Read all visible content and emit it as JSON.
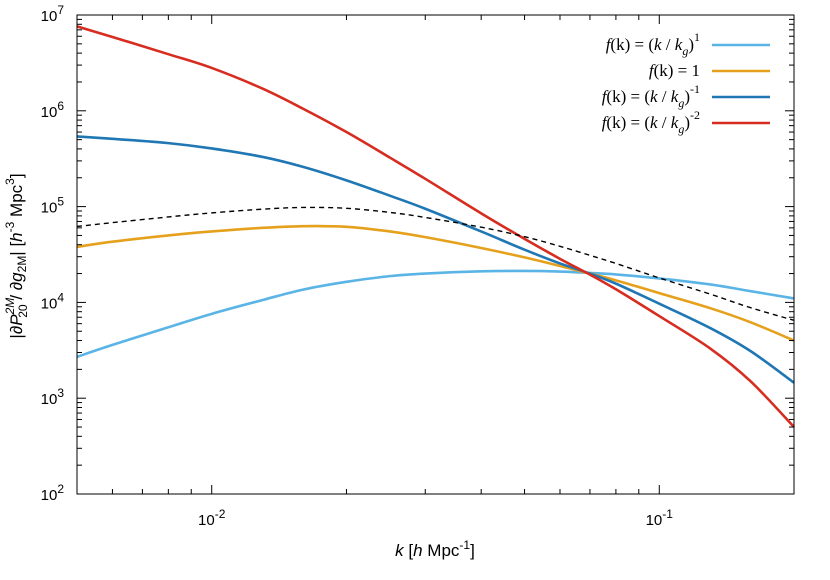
{
  "chart_data": {
    "type": "line",
    "title": "",
    "xscale": "log",
    "yscale": "log",
    "xlim": [
      0.005,
      0.2
    ],
    "ylim": [
      100,
      10000000
    ],
    "xlabel": {
      "var": "k",
      "open": " [",
      "h": "h",
      "unit": " Mpc",
      "exp": "-1",
      "close": "]"
    },
    "ylabel": {
      "pre": "|∂",
      "P": "P",
      "P_sup": "2M",
      "P_sub": "20",
      "slash": " / ∂",
      "g": "g",
      "g_sub": "2M",
      "mid": "| [",
      "h": "h",
      "h_sup": "-3",
      "unit": " Mpc",
      "unit_sup": "3",
      "close": "]"
    },
    "xticks": [
      {
        "value": 0.01,
        "base": "10",
        "exp": "-2"
      },
      {
        "value": 0.1,
        "base": "10",
        "exp": "-1"
      }
    ],
    "yticks": [
      {
        "value": 100,
        "base": "10",
        "exp": "2"
      },
      {
        "value": 1000,
        "base": "10",
        "exp": "3"
      },
      {
        "value": 10000,
        "base": "10",
        "exp": "4"
      },
      {
        "value": 100000,
        "base": "10",
        "exp": "5"
      },
      {
        "value": 1000000,
        "base": "10",
        "exp": "6"
      },
      {
        "value": 10000000,
        "base": "10",
        "exp": "7"
      }
    ],
    "grid": false,
    "legend_position": "top-right",
    "series": [
      {
        "legend": {
          "f": "f",
          "mid": "(k) = (",
          "k": "k",
          "div": " / ",
          "kg": "k",
          "kg_sub": "g",
          "close": ")",
          "exp": "1"
        },
        "color": "#5ab4e5",
        "dashed": false,
        "x": [
          0.005,
          0.006,
          0.008,
          0.01,
          0.013,
          0.016,
          0.02,
          0.025,
          0.03,
          0.04,
          0.05,
          0.06,
          0.07,
          0.08,
          0.1,
          0.13,
          0.16,
          0.2
        ],
        "y": [
          2700,
          3600,
          5500,
          7600,
          10600,
          13600,
          16400,
          18800,
          20000,
          21100,
          21300,
          21000,
          20300,
          19600,
          17800,
          15400,
          13100,
          11000
        ]
      },
      {
        "legend": {
          "f": "f",
          "mid": "(k) = 1"
        },
        "color": "#e6a11c",
        "dashed": false,
        "x": [
          0.005,
          0.006,
          0.008,
          0.01,
          0.013,
          0.016,
          0.02,
          0.025,
          0.03,
          0.04,
          0.05,
          0.06,
          0.07,
          0.08,
          0.1,
          0.13,
          0.16,
          0.2
        ],
        "y": [
          38000,
          43000,
          50000,
          55000,
          60000,
          62500,
          61500,
          55000,
          48000,
          37000,
          29500,
          24000,
          20000,
          17000,
          12500,
          8700,
          6200,
          4000
        ]
      },
      {
        "legend": {
          "f": "f",
          "mid": "(k) = (",
          "k": "k",
          "div": " / ",
          "kg": "k",
          "kg_sub": "g",
          "close": ")",
          "exp": "-1"
        },
        "color": "#1f77b4",
        "dashed": false,
        "x": [
          0.005,
          0.006,
          0.008,
          0.01,
          0.013,
          0.016,
          0.02,
          0.025,
          0.03,
          0.04,
          0.05,
          0.06,
          0.07,
          0.08,
          0.1,
          0.13,
          0.16,
          0.2
        ],
        "y": [
          540000,
          510000,
          460000,
          405000,
          330000,
          260000,
          188000,
          130000,
          95000,
          55000,
          35500,
          25500,
          20000,
          15700,
          9700,
          5400,
          3100,
          1450
        ]
      },
      {
        "legend": {
          "f": "f",
          "mid": "(k) = (",
          "k": "k",
          "div": " / ",
          "kg": "k",
          "kg_sub": "g",
          "close": ")",
          "exp": "-2"
        },
        "color": "#d62d20",
        "dashed": false,
        "x": [
          0.005,
          0.006,
          0.008,
          0.01,
          0.013,
          0.016,
          0.02,
          0.025,
          0.03,
          0.04,
          0.05,
          0.06,
          0.07,
          0.08,
          0.1,
          0.13,
          0.16,
          0.2
        ],
        "y": [
          7600000,
          5900000,
          3900000,
          2800000,
          1700000,
          1050000,
          600000,
          325000,
          195000,
          85000,
          46000,
          28500,
          19500,
          13700,
          7200,
          3300,
          1500,
          500
        ]
      },
      {
        "color": "#000000",
        "dashed": true,
        "x": [
          0.005,
          0.006,
          0.008,
          0.01,
          0.013,
          0.016,
          0.02,
          0.025,
          0.03,
          0.04,
          0.05,
          0.06,
          0.07,
          0.08,
          0.1,
          0.13,
          0.16,
          0.2
        ],
        "y": [
          62000,
          68000,
          78000,
          86000,
          94000,
          98000,
          96000,
          87000,
          77000,
          61000,
          48500,
          38500,
          31000,
          25500,
          18000,
          12200,
          8800,
          6500
        ]
      }
    ]
  }
}
